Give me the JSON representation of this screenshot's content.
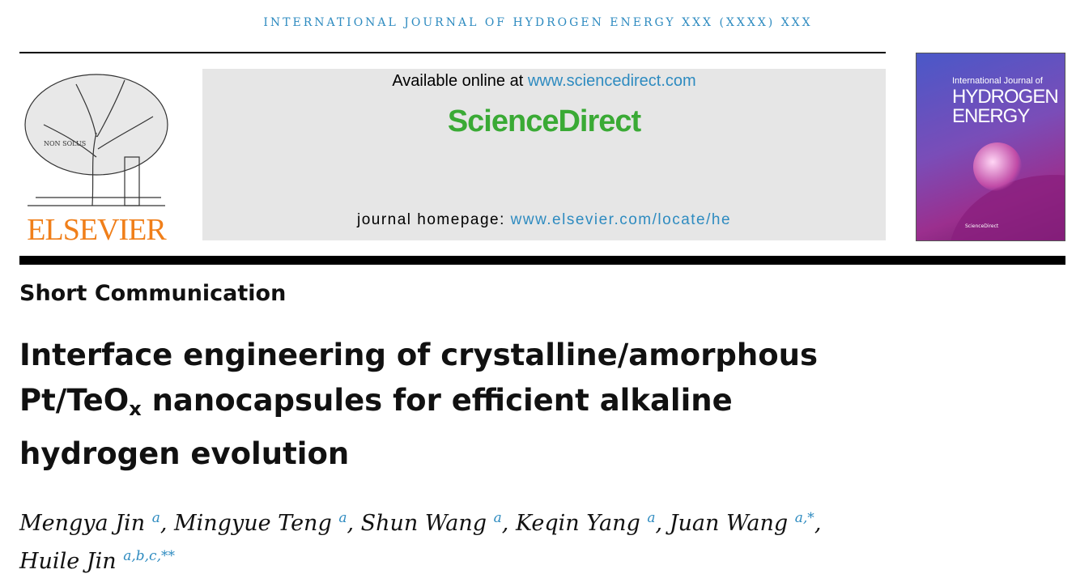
{
  "journal_header": "INTERNATIONAL JOURNAL OF HYDROGEN ENERGY XXX (XXXX) XXX",
  "publisher_logo": "ELSEVIER",
  "banner": {
    "available_prefix": "Available online at ",
    "available_link": "www.sciencedirect.com",
    "brand": "ScienceDirect",
    "homepage_prefix": "journal homepage: ",
    "homepage_link": "www.elsevier.com/locate/he"
  },
  "cover": {
    "line1": "International Journal of",
    "line2": "HYDROGEN",
    "line3": "ENERGY",
    "footer": "ScienceDirect"
  },
  "article_type": "Short Communication",
  "title": {
    "line1": "Interface engineering of crystalline/amorphous",
    "line2_a": "Pt/TeO",
    "line2_sub": "x",
    "line2_b": " nanocapsules for efficient alkaline",
    "line3": "hydrogen evolution"
  },
  "authors": [
    {
      "name": "Mengya Jin",
      "aff": "a",
      "sep": ", "
    },
    {
      "name": "Mingyue Teng",
      "aff": "a",
      "sep": ", "
    },
    {
      "name": "Shun Wang",
      "aff": "a",
      "sep": ", "
    },
    {
      "name": "Keqin Yang",
      "aff": "a",
      "sep": ", "
    },
    {
      "name": "Juan Wang",
      "aff": "a,*",
      "sep": ","
    },
    {
      "name": "Huile Jin",
      "aff": "a,b,c,**",
      "sep": ""
    }
  ],
  "colors": {
    "link": "#2e8bc0",
    "elsevier": "#f07f1a",
    "sciencedirect": "#3aaa35"
  }
}
